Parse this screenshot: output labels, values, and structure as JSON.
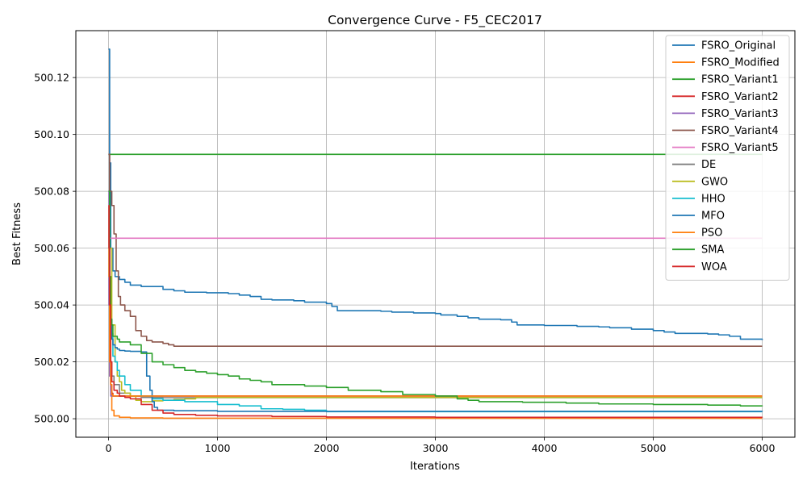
{
  "chart_data": {
    "type": "line",
    "title": "Convergence Curve - F5_CEC2017",
    "xlabel": "Iterations",
    "ylabel": "Best Fitness",
    "xlim": [
      -300,
      6300
    ],
    "ylim": [
      499.9935,
      500.1365
    ],
    "xticks": [
      0,
      1000,
      2000,
      3000,
      4000,
      5000,
      6000
    ],
    "yticks": [
      500.0,
      500.02,
      500.04,
      500.06,
      500.08,
      500.1,
      500.12
    ],
    "ytick_labels": [
      "500.00",
      "500.02",
      "500.04",
      "500.06",
      "500.08",
      "500.10",
      "500.12"
    ],
    "grid": true,
    "legend_position": "top-right",
    "series": [
      {
        "name": "FSRO_Original",
        "color": "#1f77b4",
        "x": [
          0,
          10,
          20,
          40,
          60,
          100,
          150,
          200,
          300,
          500,
          600,
          700,
          900,
          1100,
          1200,
          1300,
          1400,
          1500,
          1700,
          1800,
          2000,
          2050,
          2100,
          2500,
          2600,
          2800,
          3000,
          3050,
          3200,
          3300,
          3400,
          3600,
          3700,
          3750,
          4000,
          4300,
          4500,
          4600,
          4800,
          5000,
          5100,
          5200,
          5500,
          5600,
          5700,
          5800,
          6000
        ],
        "y": [
          500.13,
          500.09,
          500.06,
          500.052,
          500.05,
          500.049,
          500.048,
          500.047,
          500.0465,
          500.0455,
          500.045,
          500.0445,
          500.0443,
          500.044,
          500.0435,
          500.043,
          500.042,
          500.0418,
          500.0415,
          500.041,
          500.0405,
          500.0395,
          500.038,
          500.0378,
          500.0375,
          500.0372,
          500.037,
          500.0365,
          500.036,
          500.0355,
          500.035,
          500.0348,
          500.034,
          500.033,
          500.0328,
          500.0325,
          500.0323,
          500.032,
          500.0315,
          500.031,
          500.0305,
          500.03,
          500.0298,
          500.0295,
          500.029,
          500.028,
          500.0277
        ]
      },
      {
        "name": "FSRO_Modified",
        "color": "#ff7f0e",
        "x": [
          0,
          5,
          10,
          20,
          30,
          50,
          100,
          200,
          500,
          6000
        ],
        "y": [
          500.075,
          500.06,
          500.03,
          500.01,
          500.003,
          500.001,
          500.0005,
          500.0003,
          500.0002,
          500.0002
        ]
      },
      {
        "name": "FSRO_Variant1",
        "color": "#2ca02c",
        "x": [
          0,
          6000
        ],
        "y": [
          500.093,
          500.093
        ]
      },
      {
        "name": "FSRO_Variant2",
        "color": "#d62728",
        "x": [
          0,
          5,
          10,
          20,
          30,
          40,
          6000
        ],
        "y": [
          500.075,
          500.04,
          500.02,
          500.012,
          500.009,
          500.008,
          500.008
        ]
      },
      {
        "name": "FSRO_Variant3",
        "color": "#9467bd",
        "x": [
          0,
          5,
          10,
          20,
          30,
          6000
        ],
        "y": [
          500.08,
          500.04,
          500.015,
          500.008,
          500.008,
          500.008
        ]
      },
      {
        "name": "FSRO_Variant4",
        "color": "#8c564b",
        "x": [
          0,
          10,
          30,
          50,
          70,
          90,
          110,
          150,
          200,
          250,
          300,
          350,
          400,
          500,
          550,
          600,
          6000
        ],
        "y": [
          500.093,
          500.08,
          500.075,
          500.065,
          500.052,
          500.043,
          500.04,
          500.038,
          500.036,
          500.031,
          500.029,
          500.0275,
          500.027,
          500.0265,
          500.026,
          500.0255,
          500.0255
        ]
      },
      {
        "name": "FSRO_Variant5",
        "color": "#e377c2",
        "x": [
          0,
          6000
        ],
        "y": [
          500.0635,
          500.0635
        ]
      },
      {
        "name": "DE",
        "color": "#7f7f7f",
        "x": [
          0,
          5,
          10,
          20,
          30,
          50,
          100,
          200,
          300,
          500,
          6000
        ],
        "y": [
          500.075,
          500.05,
          500.03,
          500.02,
          500.015,
          500.012,
          500.009,
          500.008,
          500.0075,
          500.0074,
          500.0074
        ]
      },
      {
        "name": "GWO",
        "color": "#bcbd22",
        "x": [
          0,
          10,
          30,
          60,
          80,
          100,
          120,
          150,
          200,
          250,
          300,
          400,
          500,
          600,
          700,
          800,
          900,
          1000,
          1500,
          2000,
          2500,
          3000,
          6000
        ],
        "y": [
          500.075,
          500.06,
          500.033,
          500.02,
          500.015,
          500.013,
          500.01,
          500.009,
          500.008,
          500.0065,
          500.006,
          500.0063,
          500.0065,
          500.0068,
          500.007,
          500.0075,
          500.0075,
          500.0075,
          500.0075,
          500.0075,
          500.0075,
          500.0075,
          500.0075
        ]
      },
      {
        "name": "HHO",
        "color": "#17becf",
        "x": [
          0,
          10,
          20,
          40,
          60,
          80,
          100,
          150,
          200,
          300,
          400,
          500,
          700,
          1000,
          1200,
          1400,
          1600,
          1800,
          2000,
          6000
        ],
        "y": [
          500.075,
          500.04,
          500.03,
          500.022,
          500.02,
          500.017,
          500.015,
          500.012,
          500.01,
          500.008,
          500.007,
          500.0065,
          500.006,
          500.005,
          500.0045,
          500.0035,
          500.0033,
          500.003,
          500.0025,
          500.0025
        ]
      },
      {
        "name": "MFO",
        "color": "#1f77b4",
        "x": [
          0,
          10,
          20,
          30,
          40,
          60,
          80,
          100,
          150,
          200,
          300,
          340,
          350,
          380,
          400,
          420,
          450,
          600,
          1000,
          6000
        ],
        "y": [
          500.08,
          500.05,
          500.035,
          500.028,
          500.026,
          500.025,
          500.0245,
          500.024,
          500.0238,
          500.0237,
          500.0235,
          500.0235,
          500.015,
          500.01,
          500.006,
          500.004,
          500.003,
          500.0028,
          500.0026,
          500.0025
        ]
      },
      {
        "name": "PSO",
        "color": "#ff7f0e",
        "x": [
          0,
          5,
          10,
          20,
          30,
          40,
          6000
        ],
        "y": [
          500.075,
          500.05,
          500.02,
          500.012,
          500.0085,
          500.008,
          500.008
        ]
      },
      {
        "name": "SMA",
        "color": "#2ca02c",
        "x": [
          0,
          10,
          20,
          30,
          40,
          80,
          100,
          200,
          300,
          400,
          500,
          600,
          700,
          800,
          900,
          1000,
          1100,
          1200,
          1300,
          1400,
          1500,
          1800,
          2000,
          2200,
          2500,
          2700,
          3000,
          3200,
          3300,
          3400,
          3800,
          4200,
          4500,
          5000,
          5500,
          5800,
          6000
        ],
        "y": [
          500.08,
          500.05,
          500.035,
          500.033,
          500.029,
          500.028,
          500.027,
          500.026,
          500.023,
          500.02,
          500.019,
          500.018,
          500.017,
          500.0165,
          500.016,
          500.0155,
          500.015,
          500.014,
          500.0135,
          500.013,
          500.012,
          500.0115,
          500.011,
          500.01,
          500.0095,
          500.0085,
          500.008,
          500.007,
          500.0065,
          500.006,
          500.0058,
          500.0055,
          500.0052,
          500.005,
          500.0048,
          500.0045,
          500.0044
        ]
      },
      {
        "name": "WOA",
        "color": "#d62728",
        "x": [
          0,
          5,
          10,
          20,
          30,
          50,
          80,
          100,
          150,
          200,
          300,
          400,
          500,
          600,
          800,
          1000,
          1500,
          2000,
          3000,
          6000
        ],
        "y": [
          500.075,
          500.06,
          500.04,
          500.02,
          500.013,
          500.01,
          500.009,
          500.008,
          500.0075,
          500.007,
          500.005,
          500.003,
          500.002,
          500.0015,
          500.0012,
          500.001,
          500.0008,
          500.0006,
          500.0005,
          500.0004
        ]
      }
    ]
  }
}
